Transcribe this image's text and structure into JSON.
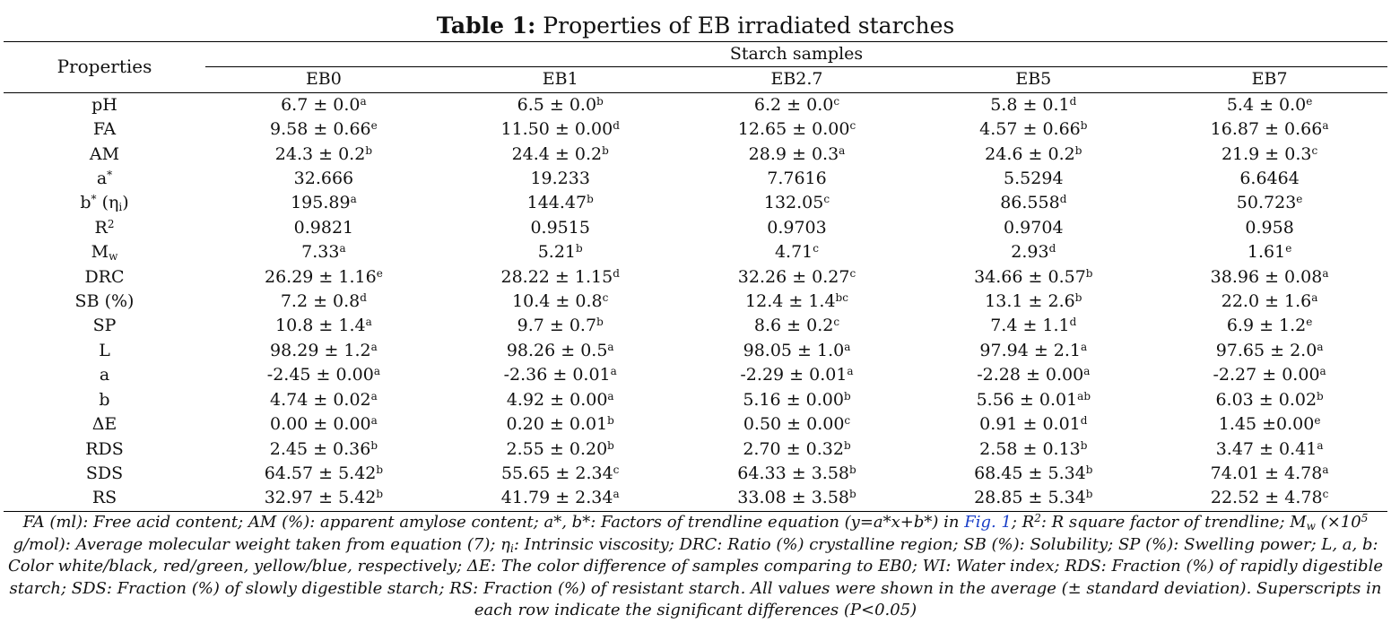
{
  "caption": {
    "label": "Table 1:",
    "text": " Properties of EB irradiated starches"
  },
  "table": {
    "row_header": "Properties",
    "group_header": "Starch samples",
    "columns": [
      "EB0",
      "EB1",
      "EB2.7",
      "EB5",
      "EB7"
    ],
    "rows": [
      {
        "name": "pH",
        "cells": [
          {
            "v": "6.7 ± 0.0",
            "s": "a"
          },
          {
            "v": "6.5 ± 0.0",
            "s": "b"
          },
          {
            "v": "6.2 ± 0.0",
            "s": "c"
          },
          {
            "v": "5.8 ± 0.1",
            "s": "d"
          },
          {
            "v": "5.4 ± 0.0",
            "s": "e"
          }
        ]
      },
      {
        "name": "FA",
        "cells": [
          {
            "v": "9.58 ± 0.66",
            "s": "e"
          },
          {
            "v": "11.50 ± 0.00",
            "s": "d"
          },
          {
            "v": "12.65 ± 0.00",
            "s": "c"
          },
          {
            "v": "4.57 ± 0.66",
            "s": "b"
          },
          {
            "v": "16.87 ± 0.66",
            "s": "a"
          }
        ]
      },
      {
        "name": "AM",
        "cells": [
          {
            "v": "24.3 ± 0.2",
            "s": "b"
          },
          {
            "v": "24.4 ± 0.2",
            "s": "b"
          },
          {
            "v": "28.9 ± 0.3",
            "s": "a"
          },
          {
            "v": "24.6 ± 0.2",
            "s": "b"
          },
          {
            "v": "21.9 ± 0.3",
            "s": "c"
          }
        ]
      },
      {
        "name": "a",
        "name_sup": "*",
        "cells": [
          {
            "v": "32.666",
            "s": ""
          },
          {
            "v": "19.233",
            "s": ""
          },
          {
            "v": "7.7616",
            "s": ""
          },
          {
            "v": "5.5294",
            "s": ""
          },
          {
            "v": "6.6464",
            "s": ""
          }
        ]
      },
      {
        "name": "b",
        "name_sup": "*",
        "name_tail": " (η",
        "name_sub": "i",
        "name_end": ")",
        "cells": [
          {
            "v": "195.89",
            "s": "a"
          },
          {
            "v": "144.47",
            "s": "b"
          },
          {
            "v": "132.05",
            "s": "c"
          },
          {
            "v": "86.558",
            "s": "d"
          },
          {
            "v": "50.723",
            "s": "e"
          }
        ]
      },
      {
        "name": "R",
        "name_sup": "2",
        "cells": [
          {
            "v": "0.9821",
            "s": ""
          },
          {
            "v": "0.9515",
            "s": ""
          },
          {
            "v": "0.9703",
            "s": ""
          },
          {
            "v": "0.9704",
            "s": ""
          },
          {
            "v": "0.958",
            "s": ""
          }
        ]
      },
      {
        "name": "M",
        "name_sub": "w",
        "cells": [
          {
            "v": "7.33",
            "s": "a"
          },
          {
            "v": "5.21",
            "s": "b"
          },
          {
            "v": "4.71",
            "s": "c"
          },
          {
            "v": "2.93",
            "s": "d"
          },
          {
            "v": "1.61",
            "s": "e"
          }
        ]
      },
      {
        "name": "DRC",
        "cells": [
          {
            "v": "26.29 ± 1.16",
            "s": "e"
          },
          {
            "v": "28.22 ± 1.15",
            "s": "d"
          },
          {
            "v": "32.26 ± 0.27",
            "s": "c"
          },
          {
            "v": "34.66 ± 0.57",
            "s": "b"
          },
          {
            "v": "38.96 ± 0.08",
            "s": "a"
          }
        ]
      },
      {
        "name": "SB (%)",
        "cells": [
          {
            "v": "7.2 ± 0.8",
            "s": "d"
          },
          {
            "v": "10.4 ± 0.8",
            "s": "c"
          },
          {
            "v": "12.4 ± 1.4",
            "s": "bc"
          },
          {
            "v": "13.1 ± 2.6",
            "s": "b"
          },
          {
            "v": "22.0 ± 1.6",
            "s": "a"
          }
        ]
      },
      {
        "name": "SP",
        "cells": [
          {
            "v": "10.8 ± 1.4",
            "s": "a"
          },
          {
            "v": "9.7 ± 0.7",
            "s": "b"
          },
          {
            "v": "8.6 ± 0.2",
            "s": "c"
          },
          {
            "v": "7.4 ± 1.1",
            "s": "d"
          },
          {
            "v": "6.9 ± 1.2",
            "s": "e"
          }
        ]
      },
      {
        "name": "L",
        "cells": [
          {
            "v": "98.29 ± 1.2",
            "s": "a"
          },
          {
            "v": "98.26 ± 0.5",
            "s": "a"
          },
          {
            "v": "98.05 ± 1.0",
            "s": "a"
          },
          {
            "v": "97.94 ± 2.1",
            "s": "a"
          },
          {
            "v": "97.65 ± 2.0",
            "s": "a"
          }
        ]
      },
      {
        "name": "a",
        "cells": [
          {
            "v": "-2.45 ± 0.00",
            "s": "a"
          },
          {
            "v": "-2.36 ± 0.01",
            "s": "a"
          },
          {
            "v": "-2.29 ± 0.01",
            "s": "a"
          },
          {
            "v": "-2.28 ± 0.00",
            "s": "a"
          },
          {
            "v": "-2.27 ± 0.00",
            "s": "a"
          }
        ]
      },
      {
        "name": "b",
        "cells": [
          {
            "v": "4.74 ± 0.02",
            "s": "a"
          },
          {
            "v": "4.92 ± 0.00",
            "s": "a"
          },
          {
            "v": "5.16 ± 0.00",
            "s": "b"
          },
          {
            "v": "5.56 ± 0.01",
            "s": "ab"
          },
          {
            "v": "6.03 ± 0.02",
            "s": "b"
          }
        ]
      },
      {
        "name": "ΔE",
        "cells": [
          {
            "v": "0.00 ± 0.00",
            "s": "a"
          },
          {
            "v": "0.20 ± 0.01",
            "s": "b"
          },
          {
            "v": "0.50 ± 0.00",
            "s": "c"
          },
          {
            "v": "0.91 ± 0.01",
            "s": "d"
          },
          {
            "v": "1.45 ±0.00",
            "s": "e"
          }
        ]
      },
      {
        "name": "RDS",
        "cells": [
          {
            "v": "2.45 ± 0.36",
            "s": "b"
          },
          {
            "v": "2.55 ± 0.20",
            "s": "b"
          },
          {
            "v": "2.70 ± 0.32",
            "s": "b"
          },
          {
            "v": "2.58 ± 0.13",
            "s": "b"
          },
          {
            "v": "3.47 ± 0.41",
            "s": "a"
          }
        ]
      },
      {
        "name": "SDS",
        "cells": [
          {
            "v": "64.57 ± 5.42",
            "s": "b"
          },
          {
            "v": "55.65 ± 2.34",
            "s": "c"
          },
          {
            "v": "64.33 ± 3.58",
            "s": "b"
          },
          {
            "v": "68.45 ± 5.34",
            "s": "b"
          },
          {
            "v": "74.01 ± 4.78",
            "s": "a"
          }
        ]
      },
      {
        "name": "RS",
        "cells": [
          {
            "v": "32.97 ± 5.42",
            "s": "b"
          },
          {
            "v": "41.79 ± 2.34",
            "s": "a"
          },
          {
            "v": "33.08 ± 3.58",
            "s": "b"
          },
          {
            "v": "28.85 ± 5.34",
            "s": "b"
          },
          {
            "v": "22.52 ± 4.78",
            "s": "c"
          }
        ]
      }
    ]
  },
  "footnote": {
    "part1": "FA (ml): Free acid content; AM (%): apparent amylose content; a*, b*: Factors of trendline equation (y=a*x+b*) in ",
    "link": "Fig. 1",
    "part2": "; R",
    "r_sup": "2",
    "part3": ": R square factor of trendline; M",
    "mw_sub": "w",
    "part4": " (×10",
    "exp_sup": "5",
    "part5": " g/mol): Average molecular weight taken from equation (7); η",
    "eta_sub": "i",
    "part6": ": Intrinsic viscosity; DRC: Ratio (%) crystalline region; SB (%): Solubility; SP (%): Swelling power; L, a, b: Color white/black, red/green, yellow/blue, respectively; ΔE: The color difference of samples comparing to EB0; WI: Water index; RDS: Fraction (%) of rapidly digestible starch; SDS: Fraction (%) of slowly digestible starch; RS: Fraction (%) of resistant starch. All values were shown in the average (± standard deviation). Superscripts in each row indicate the significant differences (P<0.05)"
  },
  "colors": {
    "link": "#1a3fc7",
    "text": "#111111",
    "rule": "#000000"
  }
}
